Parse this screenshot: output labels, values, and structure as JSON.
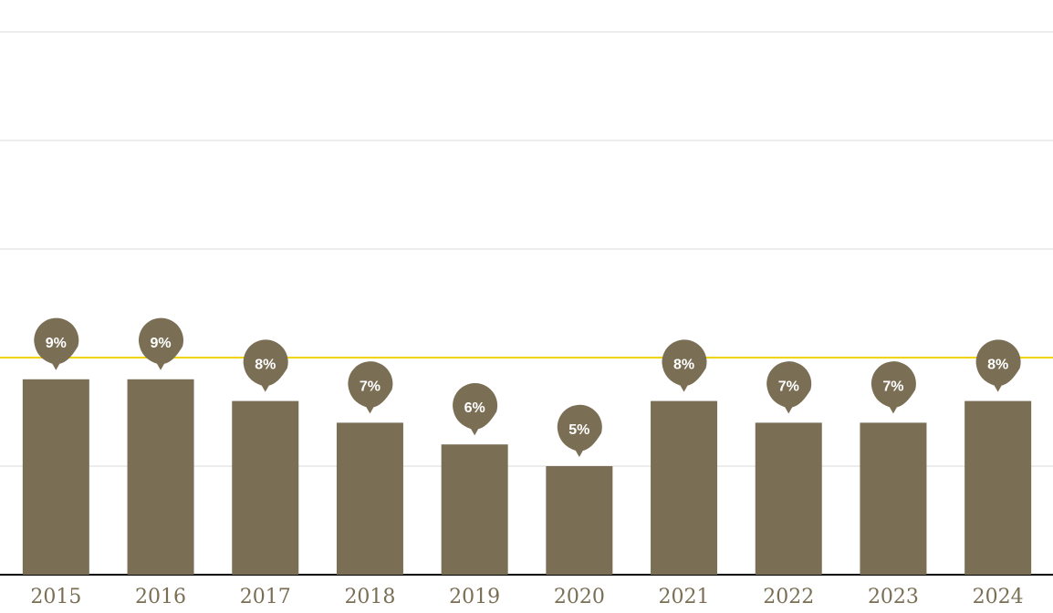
{
  "chart_data": {
    "type": "bar",
    "categories": [
      "2015",
      "2016",
      "2017",
      "2018",
      "2019",
      "2020",
      "2021",
      "2022",
      "2023",
      "2024"
    ],
    "values": [
      9,
      9,
      8,
      7,
      6,
      5,
      8,
      7,
      7,
      8
    ],
    "value_labels": [
      "9%",
      "9%",
      "8%",
      "7%",
      "6%",
      "5%",
      "8%",
      "7%",
      "7%",
      "8%"
    ],
    "color": "#7a6e55",
    "ylim": [
      0,
      25
    ],
    "yticks": [
      0,
      5,
      15,
      20,
      25
    ],
    "grid": true,
    "reference_line": {
      "value": 10,
      "color": "#f0d500"
    }
  }
}
